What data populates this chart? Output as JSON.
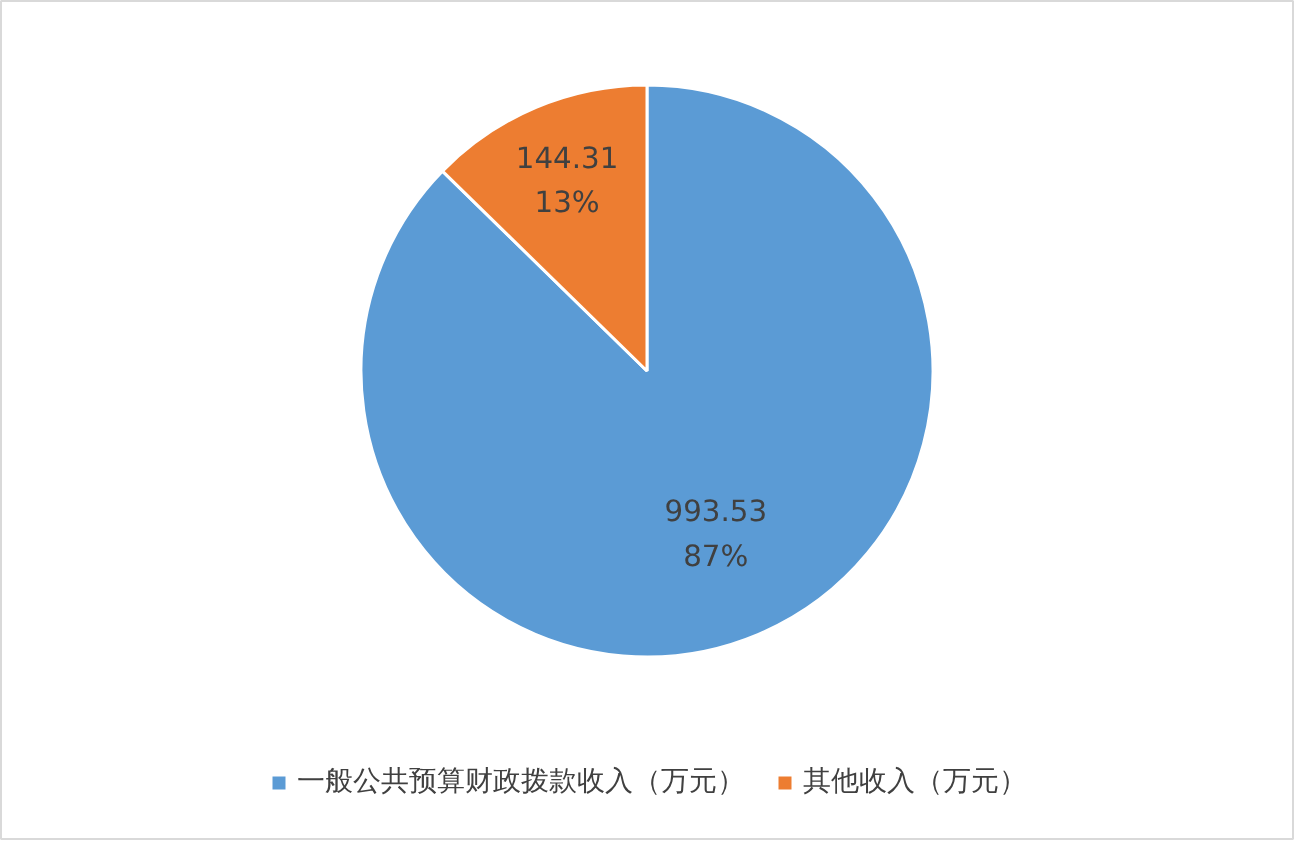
{
  "chart_data": {
    "type": "pie",
    "categories": [
      "一般公共预算财政拨款收入（万元）",
      "其他收入（万元）"
    ],
    "values": [
      993.53,
      144.31
    ],
    "colors": [
      "#5b9bd5",
      "#ed7d31"
    ],
    "value_labels": [
      "993.53\n87%",
      "144.31\n13%"
    ],
    "legend": "bottom"
  }
}
